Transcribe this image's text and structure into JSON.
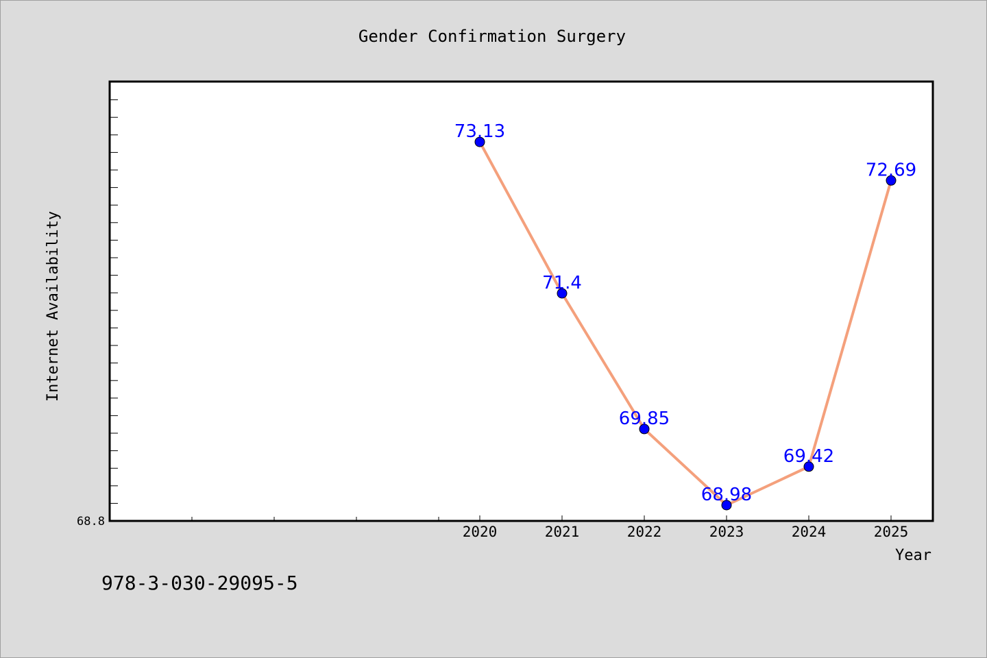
{
  "chart_data": {
    "type": "line",
    "title": "Gender Confirmation Surgery",
    "xlabel": "Year",
    "ylabel": "Internet Availability",
    "categories": [
      "2020",
      "2021",
      "2022",
      "2023",
      "2024",
      "2025"
    ],
    "series": [
      {
        "values": [
          73.13,
          71.4,
          69.85,
          68.98,
          69.42,
          72.69
        ]
      }
    ],
    "data_labels": [
      "73.13",
      "71.4",
      "69.85",
      "68.98",
      "69.42",
      "72.69"
    ],
    "y_tick_label": "68.8",
    "ylim": [
      68.8,
      73.82
    ],
    "grid": false,
    "colors": {
      "line": "#f4a07c",
      "marker": "#0000ff",
      "data_label": "#0000ff"
    }
  },
  "caption": "978-3-030-29095-5"
}
